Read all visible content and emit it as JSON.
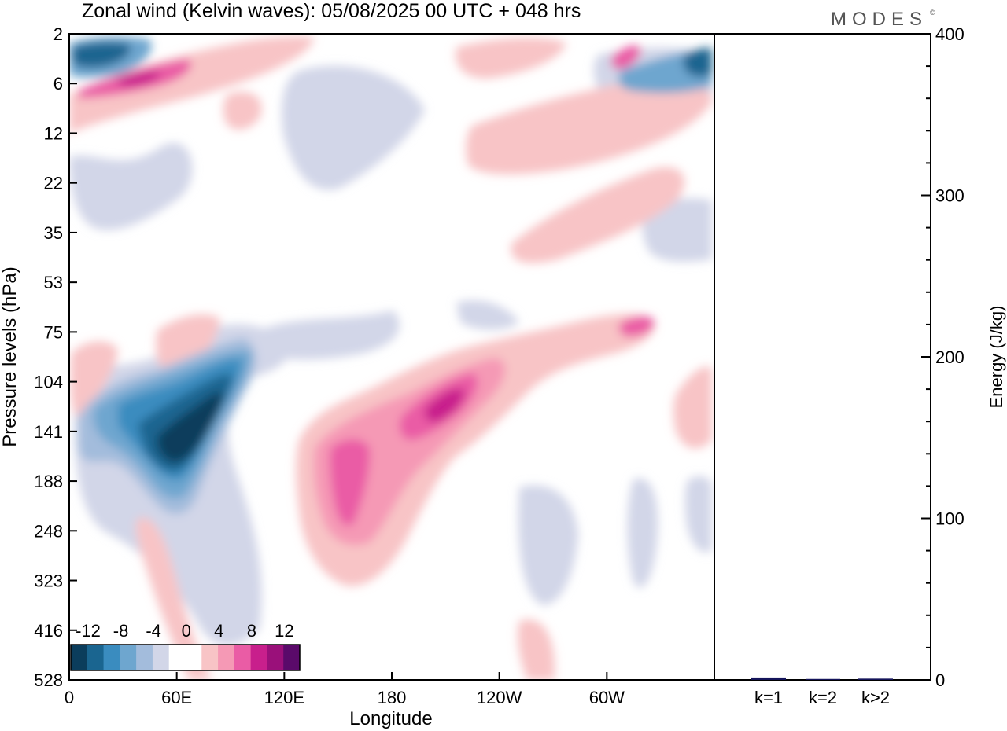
{
  "chart_data": [
    {
      "type": "heatmap",
      "title": "Zonal wind (Kelvin waves):  05/08/2025  00 UTC  + 048 hrs",
      "xlabel": "Longitude",
      "ylabel": "Pressure levels (hPa)",
      "x_ticks": [
        "0",
        "60E",
        "120E",
        "180",
        "120W",
        "60W"
      ],
      "y_ticks": [
        "2",
        "6",
        "12",
        "22",
        "35",
        "53",
        "75",
        "104",
        "141",
        "188",
        "248",
        "323",
        "416",
        "528"
      ],
      "colorbar": {
        "labels": [
          "-12",
          "-8",
          "-4",
          "0",
          "4",
          "8",
          "12"
        ],
        "colors": [
          "#0b3d5c",
          "#1a6590",
          "#3a8cbf",
          "#6ea6cf",
          "#a3bcdc",
          "#d2d6e8",
          "#ffffff",
          "#ffffff",
          "#f8c4c6",
          "#f599b5",
          "#ea5ca5",
          "#c81f8c",
          "#9a107a",
          "#5a0a6a"
        ]
      },
      "features": [
        {
          "longitude": 75,
          "pressure": 130,
          "value": -13
        },
        {
          "longitude": 195,
          "pressure": 115,
          "value": 11
        },
        {
          "longitude": 160,
          "pressure": 180,
          "value": 8
        },
        {
          "longitude": 10,
          "pressure": 3,
          "value": -10
        },
        {
          "longitude": 40,
          "pressure": 6,
          "value": 9
        },
        {
          "longitude": 340,
          "pressure": 4,
          "value": -9
        }
      ]
    },
    {
      "type": "bar",
      "ylabel": "Energy (J/kg)",
      "ylim": [
        0,
        400
      ],
      "y_ticks": [
        "0",
        "100",
        "200",
        "300",
        "400"
      ],
      "categories": [
        "k=1",
        "k=2",
        "k>2"
      ],
      "values": [
        1.5,
        0.6,
        0.8
      ]
    }
  ],
  "logo": "MODES",
  "colors": {
    "bar": "#14145a",
    "axis": "#000000"
  }
}
